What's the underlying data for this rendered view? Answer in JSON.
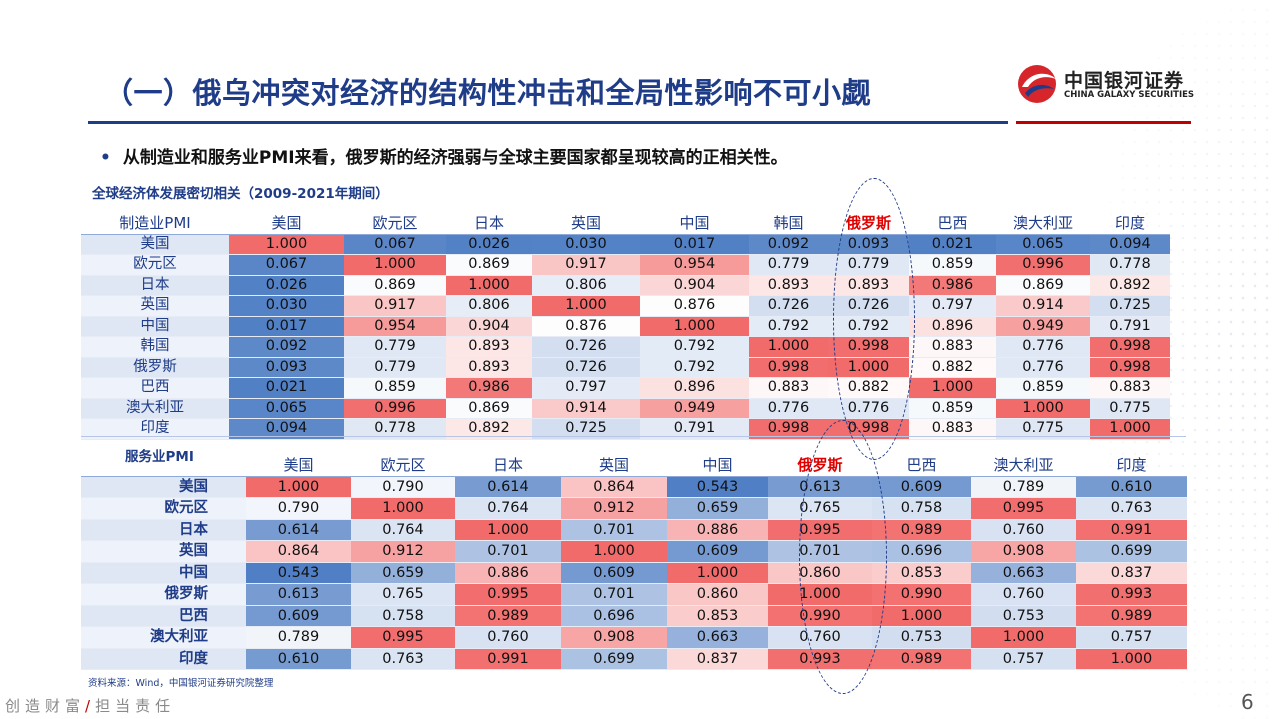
{
  "title": "（一）俄乌冲突对经济的结构性冲击和全局性影响不可小觑",
  "logo": {
    "cn": "中国银河证券",
    "en": "CHINA GALAXY SECURITIES",
    "colors": {
      "red": "#d7262b",
      "blue": "#1f3c88"
    }
  },
  "bullet": {
    "icon": "bullet-dot",
    "text": "从制造业和服务业PMI来看，俄罗斯的经济强弱与全球主要国家都呈现较高的正相关性。"
  },
  "section1_title": "全球经济体发展密切相关（2009-2021年期间）",
  "colors": {
    "high": "#f26b6b",
    "low": "#4f7ec4",
    "accent": "#1f3c88",
    "highlight": "#e00000"
  },
  "table1": {
    "corner": "制造业PMI",
    "highlight_col": "俄罗斯",
    "columns": [
      "美国",
      "欧元区",
      "日本",
      "英国",
      "中国",
      "韩国",
      "俄罗斯",
      "巴西",
      "澳大利亚",
      "印度"
    ],
    "rows": [
      {
        "label": "美国",
        "values": [
          "1.000",
          "0.067",
          "0.026",
          "0.030",
          "0.017",
          "0.092",
          "0.093",
          "0.021",
          "0.065",
          "0.094"
        ]
      },
      {
        "label": "欧元区",
        "values": [
          "0.067",
          "1.000",
          "0.869",
          "0.917",
          "0.954",
          "0.779",
          "0.779",
          "0.859",
          "0.996",
          "0.778"
        ]
      },
      {
        "label": "日本",
        "values": [
          "0.026",
          "0.869",
          "1.000",
          "0.806",
          "0.904",
          "0.893",
          "0.893",
          "0.986",
          "0.869",
          "0.892"
        ]
      },
      {
        "label": "英国",
        "values": [
          "0.030",
          "0.917",
          "0.806",
          "1.000",
          "0.876",
          "0.726",
          "0.726",
          "0.797",
          "0.914",
          "0.725"
        ]
      },
      {
        "label": "中国",
        "values": [
          "0.017",
          "0.954",
          "0.904",
          "0.876",
          "1.000",
          "0.792",
          "0.792",
          "0.896",
          "0.949",
          "0.791"
        ]
      },
      {
        "label": "韩国",
        "values": [
          "0.092",
          "0.779",
          "0.893",
          "0.726",
          "0.792",
          "1.000",
          "0.998",
          "0.883",
          "0.776",
          "0.998"
        ]
      },
      {
        "label": "俄罗斯",
        "values": [
          "0.093",
          "0.779",
          "0.893",
          "0.726",
          "0.792",
          "0.998",
          "1.000",
          "0.882",
          "0.776",
          "0.998"
        ]
      },
      {
        "label": "巴西",
        "values": [
          "0.021",
          "0.859",
          "0.986",
          "0.797",
          "0.896",
          "0.883",
          "0.882",
          "1.000",
          "0.859",
          "0.883"
        ]
      },
      {
        "label": "澳大利亚",
        "values": [
          "0.065",
          "0.996",
          "0.869",
          "0.914",
          "0.949",
          "0.776",
          "0.776",
          "0.859",
          "1.000",
          "0.775"
        ]
      },
      {
        "label": "印度",
        "values": [
          "0.094",
          "0.778",
          "0.892",
          "0.725",
          "0.791",
          "0.998",
          "0.998",
          "0.883",
          "0.775",
          "1.000"
        ]
      }
    ]
  },
  "table2": {
    "corner": "服务业PMI",
    "highlight_col": "俄罗斯",
    "columns": [
      "美国",
      "欧元区",
      "日本",
      "英国",
      "中国",
      "俄罗斯",
      "巴西",
      "澳大利亚",
      "印度"
    ],
    "rows": [
      {
        "label": "美国",
        "values": [
          "1.000",
          "0.790",
          "0.614",
          "0.864",
          "0.543",
          "0.613",
          "0.609",
          "0.789",
          "0.610"
        ]
      },
      {
        "label": "欧元区",
        "values": [
          "0.790",
          "1.000",
          "0.764",
          "0.912",
          "0.659",
          "0.765",
          "0.758",
          "0.995",
          "0.763"
        ]
      },
      {
        "label": "日本",
        "values": [
          "0.614",
          "0.764",
          "1.000",
          "0.701",
          "0.886",
          "0.995",
          "0.989",
          "0.760",
          "0.991"
        ]
      },
      {
        "label": "英国",
        "values": [
          "0.864",
          "0.912",
          "0.701",
          "1.000",
          "0.609",
          "0.701",
          "0.696",
          "0.908",
          "0.699"
        ]
      },
      {
        "label": "中国",
        "values": [
          "0.543",
          "0.659",
          "0.886",
          "0.609",
          "1.000",
          "0.860",
          "0.853",
          "0.663",
          "0.837"
        ]
      },
      {
        "label": "俄罗斯",
        "values": [
          "0.613",
          "0.765",
          "0.995",
          "0.701",
          "0.860",
          "1.000",
          "0.990",
          "0.760",
          "0.993"
        ]
      },
      {
        "label": "巴西",
        "values": [
          "0.609",
          "0.758",
          "0.989",
          "0.696",
          "0.853",
          "0.990",
          "1.000",
          "0.753",
          "0.989"
        ]
      },
      {
        "label": "澳大利亚",
        "values": [
          "0.789",
          "0.995",
          "0.760",
          "0.908",
          "0.663",
          "0.760",
          "0.753",
          "1.000",
          "0.757"
        ]
      },
      {
        "label": "印度",
        "values": [
          "0.610",
          "0.763",
          "0.991",
          "0.699",
          "0.837",
          "0.993",
          "0.989",
          "0.757",
          "1.000"
        ]
      }
    ]
  },
  "source": "资料来源：Wind，中国银河证券研究院整理",
  "footer": {
    "left": "创造财富",
    "slash": "/",
    "right": "担当责任"
  },
  "page_number": "6"
}
